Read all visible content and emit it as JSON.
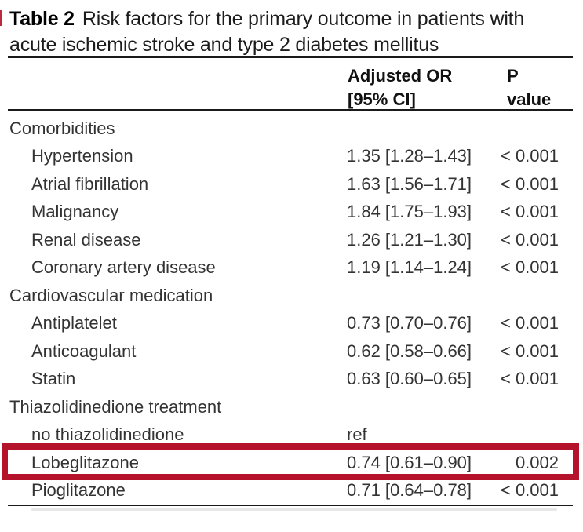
{
  "title": {
    "label": "Table 2",
    "line1": "Risk factors for the primary outcome in patients with",
    "line2": "acute ischemic stroke and type 2 diabetes mellitus"
  },
  "header": {
    "or_line1": "Adjusted OR",
    "or_line2": "[95% CI]",
    "p_line1": "P",
    "p_line2": "value"
  },
  "highlight_color": "#b5122b",
  "chart_data": {
    "type": "table",
    "title": "Table 2 Risk factors for the primary outcome in patients with acute ischemic stroke and type 2 diabetes mellitus",
    "columns": [
      "",
      "Adjusted OR [95% CI]",
      "P value"
    ],
    "rows": [
      {
        "type": "section",
        "label": "Comorbidities",
        "or": "",
        "p": ""
      },
      {
        "type": "item",
        "label": "Hypertension",
        "or": "1.35 [1.28–1.43]",
        "p": "< 0.001"
      },
      {
        "type": "item",
        "label": "Atrial fibrillation",
        "or": "1.63 [1.56–1.71]",
        "p": "< 0.001"
      },
      {
        "type": "item",
        "label": "Malignancy",
        "or": "1.84 [1.75–1.93]",
        "p": "< 0.001"
      },
      {
        "type": "item",
        "label": "Renal disease",
        "or": "1.26 [1.21–1.30]",
        "p": "< 0.001"
      },
      {
        "type": "item",
        "label": "Coronary artery disease",
        "or": "1.19 [1.14–1.24]",
        "p": "< 0.001"
      },
      {
        "type": "section",
        "label": "Cardiovascular medication",
        "or": "",
        "p": ""
      },
      {
        "type": "item",
        "label": "Antiplatelet",
        "or": "0.73 [0.70–0.76]",
        "p": "< 0.001"
      },
      {
        "type": "item",
        "label": "Anticoagulant",
        "or": "0.62 [0.58–0.66]",
        "p": "< 0.001"
      },
      {
        "type": "item",
        "label": "Statin",
        "or": "0.63 [0.60–0.65]",
        "p": "< 0.001"
      },
      {
        "type": "section",
        "label": "Thiazolidinedione treatment",
        "or": "",
        "p": ""
      },
      {
        "type": "item",
        "label": "no thiazolidinedione",
        "or": "ref",
        "p": ""
      },
      {
        "type": "item",
        "label": "Lobeglitazone",
        "or": "0.74 [0.61–0.90]",
        "p": "0.002",
        "highlighted": true
      },
      {
        "type": "item",
        "label": "Pioglitazone",
        "or": "0.71 [0.64–0.78]",
        "p": "< 0.001"
      }
    ]
  }
}
